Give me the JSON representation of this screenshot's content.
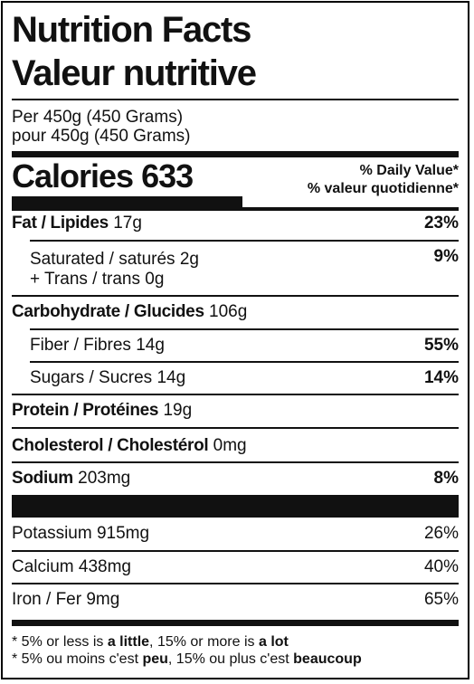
{
  "title_en": "Nutrition Facts",
  "title_fr": "Valeur nutritive",
  "serving_en": "Per 450g (450 Grams)",
  "serving_fr": "pour 450g (450 Grams)",
  "calories_label": "Calories",
  "calories_value": "633",
  "dv_en": "% Daily Value*",
  "dv_fr": "% valeur quotidienne*",
  "fat": {
    "label": "Fat / Lipides",
    "amount": "17g",
    "dv": "23%"
  },
  "saturated": {
    "label": "Saturated / saturés",
    "amount": "2g",
    "dv": "9%",
    "trans_label": "+ Trans / trans",
    "trans_amount": "0g"
  },
  "carbohydrate": {
    "label": "Carbohydrate / Glucides",
    "amount": "106g"
  },
  "fiber": {
    "label": "Fiber / Fibres",
    "amount": "14g",
    "dv": "55%"
  },
  "sugars": {
    "label": "Sugars / Sucres",
    "amount": "14g",
    "dv": "14%"
  },
  "protein": {
    "label": "Protein / Protéines",
    "amount": "19g"
  },
  "cholesterol": {
    "label": "Cholesterol / Cholestérol",
    "amount": "0mg"
  },
  "sodium": {
    "label": "Sodium",
    "amount": "203mg",
    "dv": "8%"
  },
  "potassium": {
    "label": "Potassium",
    "amount": "915mg",
    "dv": "26%"
  },
  "calcium": {
    "label": "Calcium",
    "amount": "438mg",
    "dv": "40%"
  },
  "iron": {
    "label": "Iron / Fer",
    "amount": "9mg",
    "dv": "65%"
  },
  "footnote_en": {
    "pre": "* 5% or less is ",
    "b1": "a little",
    "mid": ", 15% or more is ",
    "b2": "a lot"
  },
  "footnote_fr": {
    "pre": "* 5% ou moins c'est ",
    "b1": "peu",
    "mid": ", 15% ou plus c'est ",
    "b2": "beaucoup"
  }
}
